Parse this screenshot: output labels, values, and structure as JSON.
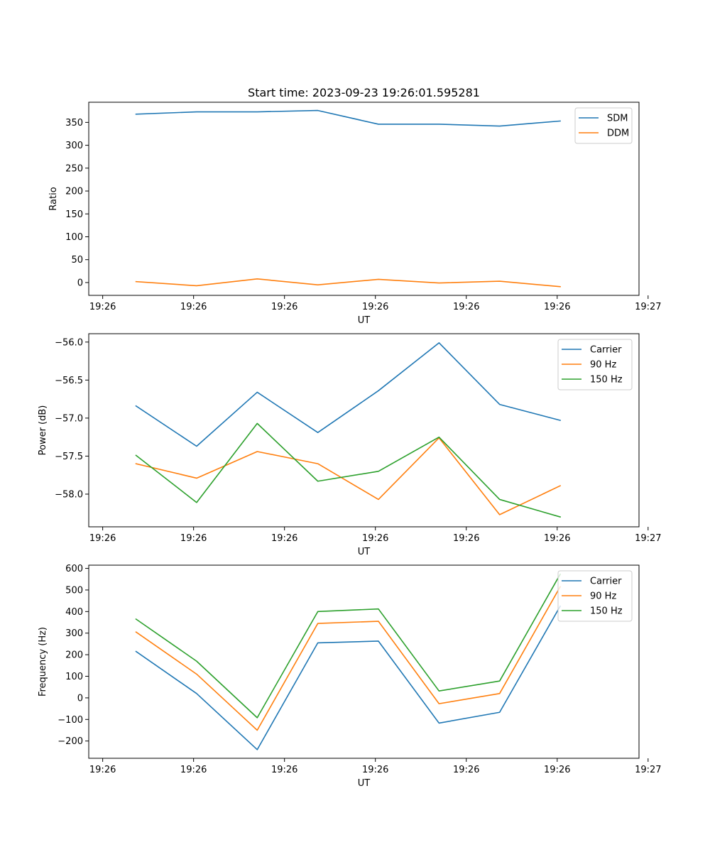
{
  "figure_title": "Start time: 2023-09-23 19:26:01.595281",
  "chart_data": [
    {
      "type": "line",
      "title": "Start time: 2023-09-23 19:26:01.595281",
      "xlabel": "UT",
      "ylabel": "Ratio",
      "x": [
        1,
        2,
        3,
        4,
        5,
        6,
        7,
        8
      ],
      "xlim": [
        0.22,
        9.3
      ],
      "x_ticks": [
        0.45,
        1.95,
        3.45,
        4.95,
        6.45,
        7.95,
        9.45
      ],
      "x_tick_labels": [
        "19:26",
        "19:26",
        "19:26",
        "19:26",
        "19:26",
        "19:26",
        "19:27"
      ],
      "ylim": [
        -28,
        394
      ],
      "y_ticks": [
        0,
        50,
        100,
        150,
        200,
        250,
        300,
        350
      ],
      "y_tick_labels": [
        "0",
        "50",
        "100",
        "150",
        "200",
        "250",
        "300",
        "350"
      ],
      "legend": "top-right",
      "series": [
        {
          "name": "SDM",
          "color": "#1f77b4",
          "values": [
            368,
            373,
            373,
            376,
            346,
            346,
            342,
            353
          ]
        },
        {
          "name": "DDM",
          "color": "#ff7f0e",
          "values": [
            2,
            -7,
            8,
            -5,
            7,
            -1,
            3,
            -9
          ]
        }
      ]
    },
    {
      "type": "line",
      "title": "",
      "xlabel": "UT",
      "ylabel": "Power (dB)",
      "x": [
        1,
        2,
        3,
        4,
        5,
        6,
        7,
        8
      ],
      "xlim": [
        0.22,
        9.3
      ],
      "x_ticks": [
        0.45,
        1.95,
        3.45,
        4.95,
        6.45,
        7.95,
        9.45
      ],
      "x_tick_labels": [
        "19:26",
        "19:26",
        "19:26",
        "19:26",
        "19:26",
        "19:26",
        "19:27"
      ],
      "ylim": [
        -58.43,
        -55.89
      ],
      "y_ticks": [
        -58.0,
        -57.5,
        -57.0,
        -56.5,
        -56.0
      ],
      "y_tick_labels": [
        "−58.0",
        "−57.5",
        "−57.0",
        "−56.5",
        "−56.0"
      ],
      "legend": "top-right",
      "series": [
        {
          "name": "Carrier",
          "color": "#1f77b4",
          "values": [
            -56.84,
            -57.37,
            -56.66,
            -57.19,
            -56.64,
            -56.01,
            -56.82,
            -57.03
          ]
        },
        {
          "name": "90 Hz",
          "color": "#ff7f0e",
          "values": [
            -57.6,
            -57.79,
            -57.44,
            -57.6,
            -58.07,
            -57.26,
            -58.27,
            -57.89
          ]
        },
        {
          "name": "150 Hz",
          "color": "#2ca02c",
          "values": [
            -57.49,
            -58.11,
            -57.07,
            -57.83,
            -57.7,
            -57.25,
            -58.07,
            -58.3
          ]
        }
      ]
    },
    {
      "type": "line",
      "title": "",
      "xlabel": "UT",
      "ylabel": "Frequency (Hz)",
      "x": [
        1,
        2,
        3,
        4,
        5,
        6,
        7,
        8
      ],
      "xlim": [
        0.22,
        9.3
      ],
      "x_ticks": [
        0.45,
        1.95,
        3.45,
        4.95,
        6.45,
        7.95,
        9.45
      ],
      "x_tick_labels": [
        "19:26",
        "19:26",
        "19:26",
        "19:26",
        "19:26",
        "19:26",
        "19:27"
      ],
      "ylim": [
        -280,
        615
      ],
      "y_ticks": [
        -200,
        -100,
        0,
        100,
        200,
        300,
        400,
        500,
        600
      ],
      "y_tick_labels": [
        "−200",
        "−100",
        "0",
        "100",
        "200",
        "300",
        "400",
        "500",
        "600"
      ],
      "legend": "top-right",
      "series": [
        {
          "name": "Carrier",
          "color": "#1f77b4",
          "values": [
            215,
            20,
            -240,
            255,
            263,
            -117,
            -67,
            425
          ]
        },
        {
          "name": "90 Hz",
          "color": "#ff7f0e",
          "values": [
            305,
            110,
            -150,
            345,
            355,
            -27,
            20,
            515
          ]
        },
        {
          "name": "150 Hz",
          "color": "#2ca02c",
          "values": [
            365,
            170,
            -92,
            400,
            412,
            32,
            78,
            573
          ]
        }
      ]
    }
  ]
}
